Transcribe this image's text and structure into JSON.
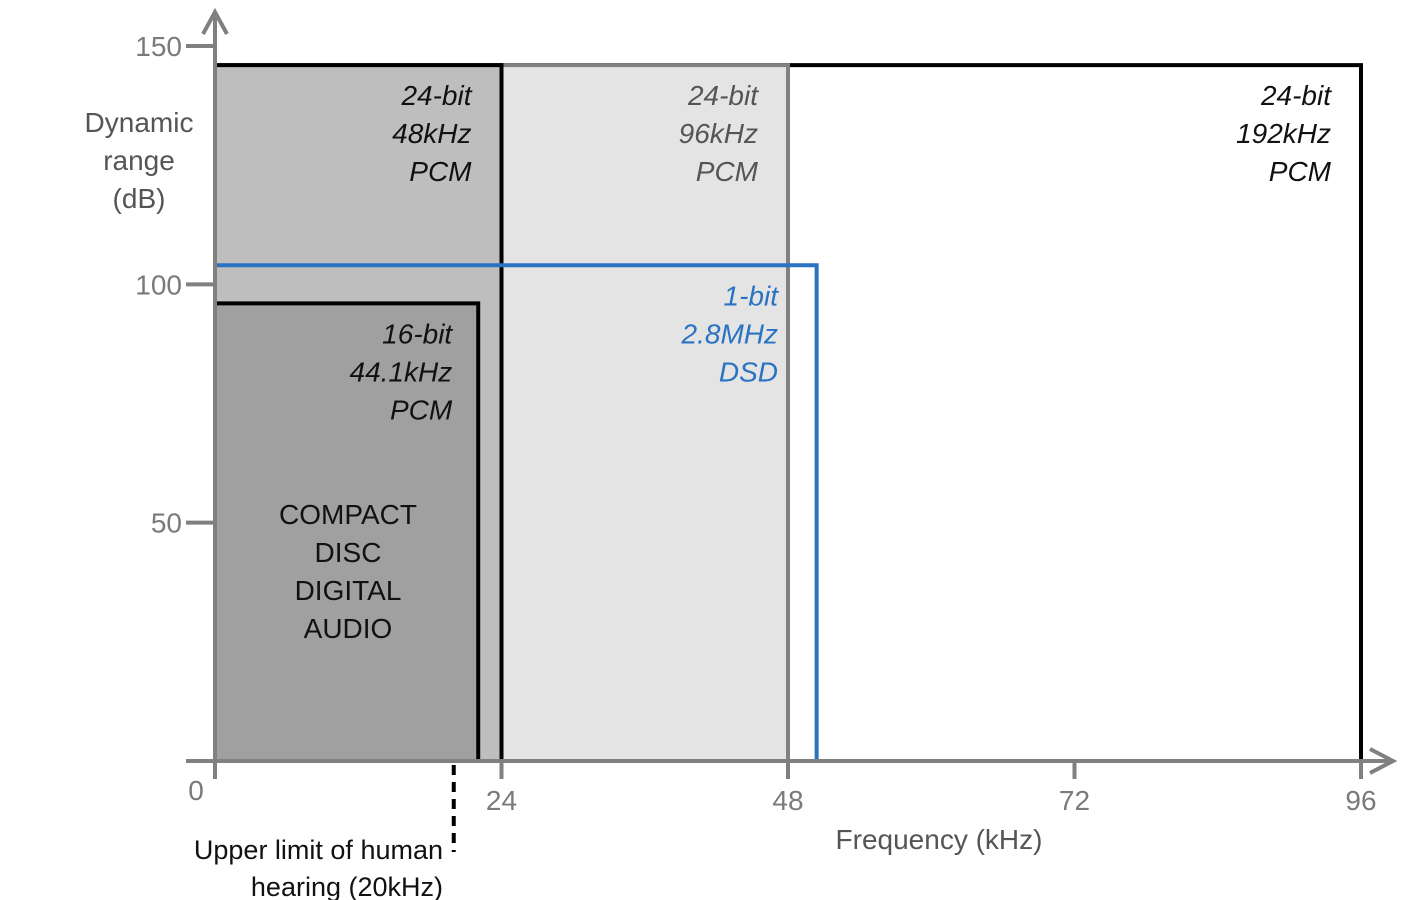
{
  "chart_data": {
    "type": "area",
    "xlabel": "Frequency (kHz)",
    "ylabel": [
      "Dynamic",
      "range",
      "(dB)"
    ],
    "xlim": [
      0,
      96
    ],
    "ylim": [
      0,
      150
    ],
    "x_ticks": [
      {
        "value": 0,
        "label": "0"
      },
      {
        "value": 24,
        "label": "24"
      },
      {
        "value": 48,
        "label": "48"
      },
      {
        "value": 72,
        "label": "72"
      },
      {
        "value": 96,
        "label": "96"
      }
    ],
    "y_ticks": [
      {
        "value": 50,
        "label": "50"
      },
      {
        "value": 100,
        "label": "100"
      },
      {
        "value": 150,
        "label": "150"
      }
    ],
    "series": [
      {
        "key": "pcm-24-192",
        "bandwidth_khz": 96,
        "dynamic_range_db": 146,
        "label": [
          "24-bit",
          "192kHz",
          "PCM"
        ],
        "fill": "#ffffff",
        "stroke": "#000000",
        "text_color": "#111111"
      },
      {
        "key": "pcm-24-96",
        "bandwidth_khz": 48,
        "dynamic_range_db": 146,
        "label": [
          "24-bit",
          "96kHz",
          "PCM"
        ],
        "fill": "#e4e4e4",
        "stroke": "#808080",
        "text_color": "#555555"
      },
      {
        "key": "pcm-24-48",
        "bandwidth_khz": 24,
        "dynamic_range_db": 146,
        "label": [
          "24-bit",
          "48kHz",
          "PCM"
        ],
        "fill": "#bebebe",
        "stroke": "#000000",
        "text_color": "#111111"
      },
      {
        "key": "pcm-16-44",
        "bandwidth_khz": 22.05,
        "dynamic_range_db": 96,
        "label": [
          "16-bit",
          "44.1kHz",
          "PCM"
        ],
        "fill": "#a0a0a0",
        "stroke": "#000000",
        "text_color": "#111111"
      },
      {
        "key": "dsd-1-2.8",
        "bandwidth_khz": 50.4,
        "dynamic_range_db": 104,
        "label": [
          "1-bit",
          "2.8MHz",
          "DSD"
        ],
        "fill": "none",
        "stroke": "#2a73c2",
        "text_color": "#2a73c2"
      }
    ],
    "cd_label": [
      "COMPACT",
      "DISC",
      "DIGITAL",
      "AUDIO"
    ],
    "hearing_limit": {
      "khz": 20,
      "label": [
        "Upper limit of human",
        "hearing (20kHz)"
      ]
    },
    "grid": false,
    "legend": "none"
  }
}
